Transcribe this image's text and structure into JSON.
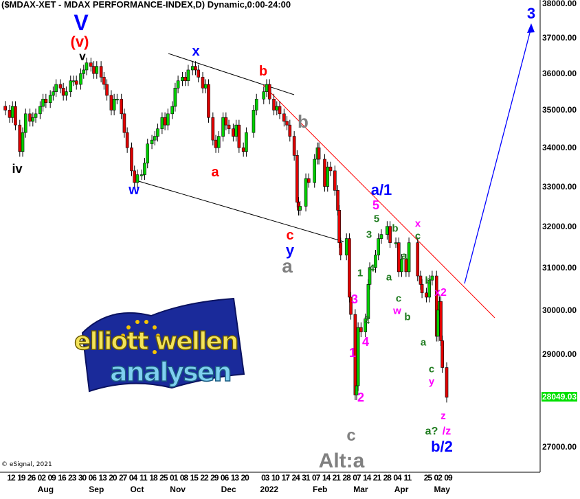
{
  "header": {
    "title": "($MDAX-XET - MDAX PERFORMANCE-INDEX,D) Dynamic,0:00-24:00"
  },
  "footer": {
    "copyright": "© eSignal, 2021"
  },
  "logo": {
    "line1": "elliott wellen",
    "line2": "analysen"
  },
  "colors": {
    "up": "#00d000",
    "down": "#e00000",
    "trend_red": "#ff0000",
    "forecast": "#0000ff",
    "badge": "#00e000"
  },
  "chart_data": {
    "type": "candlestick",
    "title": "($MDAX-XET - MDAX PERFORMANCE-INDEX,D) Dynamic,0:00-24:00",
    "y_scale": "log",
    "ylim": [
      27000,
      38000
    ],
    "y_ticks": [
      "38000.00",
      "37000.00",
      "36000.00",
      "35000.00",
      "34000.00",
      "33000.00",
      "32000.00",
      "31000.00",
      "30000.00",
      "29000.00",
      "27000.00"
    ],
    "last_price": "28049.03",
    "x_ticks": [
      [
        "2021-07-12",
        "12"
      ],
      [
        "2021-07-19",
        "19"
      ],
      [
        "2021-07-26",
        "26"
      ],
      [
        "2021-08-02",
        "02"
      ],
      [
        "2021-08-09",
        "09"
      ],
      [
        "2021-08-16",
        "16"
      ],
      [
        "2021-08-23",
        "23"
      ],
      [
        "2021-08-30",
        "30"
      ],
      [
        "2021-09-06",
        "06"
      ],
      [
        "2021-09-13",
        "13"
      ],
      [
        "2021-09-20",
        "20"
      ],
      [
        "2021-09-27",
        "27"
      ],
      [
        "2021-10-04",
        "04"
      ],
      [
        "2021-10-11",
        "11"
      ],
      [
        "2021-10-18",
        "18"
      ],
      [
        "2021-10-25",
        "25"
      ],
      [
        "2021-11-01",
        "01"
      ],
      [
        "2021-11-08",
        "08"
      ],
      [
        "2021-11-15",
        "15"
      ],
      [
        "2021-11-22",
        "22"
      ],
      [
        "2021-11-29",
        "29"
      ],
      [
        "2021-12-06",
        "06"
      ],
      [
        "2021-12-13",
        "13"
      ],
      [
        "2021-12-20",
        "20"
      ],
      [
        "2022-01-03",
        "03"
      ],
      [
        "2022-01-10",
        "10"
      ],
      [
        "2022-01-17",
        "17"
      ],
      [
        "2022-01-24",
        "24"
      ],
      [
        "2022-01-31",
        "31"
      ],
      [
        "2022-02-07",
        "07"
      ],
      [
        "2022-02-14",
        "14"
      ],
      [
        "2022-02-21",
        "21"
      ],
      [
        "2022-02-28",
        "28"
      ],
      [
        "2022-03-07",
        "07"
      ],
      [
        "2022-03-14",
        "14"
      ],
      [
        "2022-03-21",
        "21"
      ],
      [
        "2022-03-28",
        "28"
      ],
      [
        "2022-04-04",
        "04"
      ],
      [
        "2022-04-11",
        "11"
      ],
      [
        "2022-04-25",
        "25"
      ],
      [
        "2022-05-02",
        "02"
      ],
      [
        "2022-05-09",
        "09"
      ]
    ],
    "month_labels": [
      [
        "2021-08-02",
        "Aug"
      ],
      [
        "2021-09-06",
        "Sep"
      ],
      [
        "2021-10-04",
        "Oct"
      ],
      [
        "2021-11-01",
        "Nov"
      ],
      [
        "2021-12-06",
        "Dec"
      ],
      [
        "2022-01-03",
        "2022"
      ],
      [
        "2022-02-07",
        "Feb"
      ],
      [
        "2022-03-07",
        "Mar"
      ],
      [
        "2022-04-04",
        "Apr"
      ],
      [
        "2022-05-02",
        "May"
      ]
    ],
    "closes": [
      [
        "2021-07-09",
        35000
      ],
      [
        "2021-07-12",
        34800
      ],
      [
        "2021-07-14",
        35100
      ],
      [
        "2021-07-16",
        34600
      ],
      [
        "2021-07-19",
        33900
      ],
      [
        "2021-07-21",
        34400
      ],
      [
        "2021-07-23",
        34900
      ],
      [
        "2021-07-26",
        34700
      ],
      [
        "2021-07-28",
        34800
      ],
      [
        "2021-07-30",
        34900
      ],
      [
        "2021-08-02",
        35100
      ],
      [
        "2021-08-04",
        35300
      ],
      [
        "2021-08-06",
        35200
      ],
      [
        "2021-08-09",
        35400
      ],
      [
        "2021-08-11",
        35500
      ],
      [
        "2021-08-13",
        35700
      ],
      [
        "2021-08-16",
        35600
      ],
      [
        "2021-08-18",
        35400
      ],
      [
        "2021-08-20",
        35500
      ],
      [
        "2021-08-23",
        35800
      ],
      [
        "2021-08-25",
        35800
      ],
      [
        "2021-08-27",
        35700
      ],
      [
        "2021-08-30",
        36000
      ],
      [
        "2021-09-01",
        36100
      ],
      [
        "2021-09-03",
        36300
      ],
      [
        "2021-09-06",
        36200
      ],
      [
        "2021-09-08",
        36000
      ],
      [
        "2021-09-10",
        36200
      ],
      [
        "2021-09-13",
        35900
      ],
      [
        "2021-09-15",
        35700
      ],
      [
        "2021-09-17",
        35400
      ],
      [
        "2021-09-20",
        35000
      ],
      [
        "2021-09-22",
        35300
      ],
      [
        "2021-09-24",
        35300
      ],
      [
        "2021-09-27",
        34900
      ],
      [
        "2021-09-29",
        34400
      ],
      [
        "2021-10-01",
        34000
      ],
      [
        "2021-10-04",
        33400
      ],
      [
        "2021-10-06",
        33100
      ],
      [
        "2021-10-08",
        33300
      ],
      [
        "2021-10-11",
        33300
      ],
      [
        "2021-10-13",
        33600
      ],
      [
        "2021-10-15",
        34100
      ],
      [
        "2021-10-18",
        34200
      ],
      [
        "2021-10-20",
        34300
      ],
      [
        "2021-10-22",
        34500
      ],
      [
        "2021-10-25",
        34800
      ],
      [
        "2021-10-27",
        34600
      ],
      [
        "2021-10-29",
        34900
      ],
      [
        "2021-11-01",
        35100
      ],
      [
        "2021-11-03",
        35600
      ],
      [
        "2021-11-05",
        35800
      ],
      [
        "2021-11-08",
        35900
      ],
      [
        "2021-11-10",
        35800
      ],
      [
        "2021-11-12",
        36100
      ],
      [
        "2021-11-15",
        36200
      ],
      [
        "2021-11-17",
        36100
      ],
      [
        "2021-11-19",
        35900
      ],
      [
        "2021-11-22",
        35600
      ],
      [
        "2021-11-24",
        35700
      ],
      [
        "2021-11-26",
        34800
      ],
      [
        "2021-11-29",
        34200
      ],
      [
        "2021-12-01",
        34000
      ],
      [
        "2021-12-03",
        34300
      ],
      [
        "2021-12-06",
        34800
      ],
      [
        "2021-12-08",
        34600
      ],
      [
        "2021-12-10",
        34500
      ],
      [
        "2021-12-13",
        34300
      ],
      [
        "2021-12-15",
        34600
      ],
      [
        "2021-12-17",
        34000
      ],
      [
        "2021-12-20",
        33900
      ],
      [
        "2021-12-22",
        34400
      ],
      [
        "2021-12-27",
        35000
      ],
      [
        "2021-12-29",
        35300
      ],
      [
        "2022-01-03",
        35500
      ],
      [
        "2022-01-05",
        35700
      ],
      [
        "2022-01-07",
        35300
      ],
      [
        "2022-01-10",
        35000
      ],
      [
        "2022-01-12",
        35100
      ],
      [
        "2022-01-14",
        34900
      ],
      [
        "2022-01-17",
        34700
      ],
      [
        "2022-01-19",
        34600
      ],
      [
        "2022-01-21",
        34300
      ],
      [
        "2022-01-24",
        33800
      ],
      [
        "2022-01-26",
        32600
      ],
      [
        "2022-01-27",
        32400
      ],
      [
        "2022-01-28",
        32500
      ],
      [
        "2022-02-01",
        33200
      ],
      [
        "2022-02-03",
        33100
      ],
      [
        "2022-02-07",
        33700
      ],
      [
        "2022-02-09",
        34000
      ],
      [
        "2022-02-10",
        33700
      ],
      [
        "2022-02-14",
        33000
      ],
      [
        "2022-02-16",
        33500
      ],
      [
        "2022-02-18",
        33400
      ],
      [
        "2022-02-21",
        32900
      ],
      [
        "2022-02-23",
        32400
      ],
      [
        "2022-02-24",
        31600
      ],
      [
        "2022-02-25",
        31300
      ],
      [
        "2022-03-01",
        31700
      ],
      [
        "2022-03-03",
        30300
      ],
      [
        "2022-03-04",
        29900
      ],
      [
        "2022-03-07",
        28100
      ],
      [
        "2022-03-08",
        28300
      ],
      [
        "2022-03-09",
        29600
      ],
      [
        "2022-03-11",
        29500
      ],
      [
        "2022-03-14",
        29800
      ],
      [
        "2022-03-16",
        30600
      ],
      [
        "2022-03-17",
        31000
      ],
      [
        "2022-03-21",
        31300
      ],
      [
        "2022-03-23",
        31700
      ],
      [
        "2022-03-25",
        31800
      ],
      [
        "2022-03-29",
        32000
      ],
      [
        "2022-03-31",
        31600
      ],
      [
        "2022-04-04",
        31600
      ],
      [
        "2022-04-06",
        30900
      ],
      [
        "2022-04-08",
        31200
      ],
      [
        "2022-04-11",
        30900
      ],
      [
        "2022-04-13",
        31600
      ],
      [
        "2022-04-19",
        30800
      ],
      [
        "2022-04-21",
        30600
      ],
      [
        "2022-04-22",
        30400
      ],
      [
        "2022-04-25",
        30300
      ],
      [
        "2022-04-27",
        30700
      ],
      [
        "2022-04-29",
        30800
      ],
      [
        "2022-05-02",
        29400
      ],
      [
        "2022-05-03",
        30000
      ],
      [
        "2022-05-04",
        30200
      ],
      [
        "2022-05-05",
        29300
      ],
      [
        "2022-05-06",
        28700
      ],
      [
        "2022-05-09",
        28049.03
      ]
    ],
    "wave_labels": [
      {
        "text": "V",
        "color": "#0000ff"
      },
      {
        "text": "(v)",
        "color": "#ff0000"
      },
      {
        "text": "v",
        "color": "#000000"
      },
      {
        "text": "iv",
        "color": "#000000"
      },
      {
        "text": "w",
        "color": "#0000ff"
      },
      {
        "text": "x",
        "color": "#0000ff"
      },
      {
        "text": "a",
        "color": "#ff0000"
      },
      {
        "text": "b",
        "color": "#ff0000"
      },
      {
        "text": "b",
        "color": "#808080"
      },
      {
        "text": "c",
        "color": "#ff0000"
      },
      {
        "text": "y",
        "color": "#0000ff"
      },
      {
        "text": "a",
        "color": "#808080"
      },
      {
        "text": "a/1",
        "color": "#0000ff"
      },
      {
        "text": "5",
        "color": "#ff00ff"
      },
      {
        "text": "5",
        "color": "#1e7b1e"
      },
      {
        "text": "3",
        "color": "#1e7b1e"
      },
      {
        "text": "4",
        "color": "#1e7b1e"
      },
      {
        "text": "1",
        "color": "#1e7b1e"
      },
      {
        "text": "2",
        "color": "#1e7b1e"
      },
      {
        "text": "3",
        "color": "#ff00ff"
      },
      {
        "text": "4",
        "color": "#ff00ff"
      },
      {
        "text": "1",
        "color": "#ff00ff"
      },
      {
        "text": "2",
        "color": "#ff00ff"
      },
      {
        "text": "c",
        "color": "#808080"
      },
      {
        "text": "Alt:a",
        "color": "#808080"
      },
      {
        "text": "b",
        "color": "#1e7b1e"
      },
      {
        "text": "a",
        "color": "#1e7b1e"
      },
      {
        "text": "a",
        "color": "#1e7b1e"
      },
      {
        "text": "c",
        "color": "#1e7b1e"
      },
      {
        "text": "w",
        "color": "#ff00ff"
      },
      {
        "text": "b",
        "color": "#1e7b1e"
      },
      {
        "text": "x",
        "color": "#ff00ff"
      },
      {
        "text": "c",
        "color": "#1e7b1e"
      },
      {
        "text": "b",
        "color": "#1e7b1e"
      },
      {
        "text": "x2",
        "color": "#ff00ff"
      },
      {
        "text": "a",
        "color": "#1e7b1e"
      },
      {
        "text": "c",
        "color": "#1e7b1e"
      },
      {
        "text": "y",
        "color": "#ff00ff"
      },
      {
        "text": "z",
        "color": "#ff00ff"
      },
      {
        "text": "a?",
        "color": "#1e7b1e"
      },
      {
        "text": "/z",
        "color": "#ff00ff"
      },
      {
        "text": "b/2",
        "color": "#0000ff"
      },
      {
        "text": "3",
        "color": "#0000ff"
      }
    ]
  }
}
